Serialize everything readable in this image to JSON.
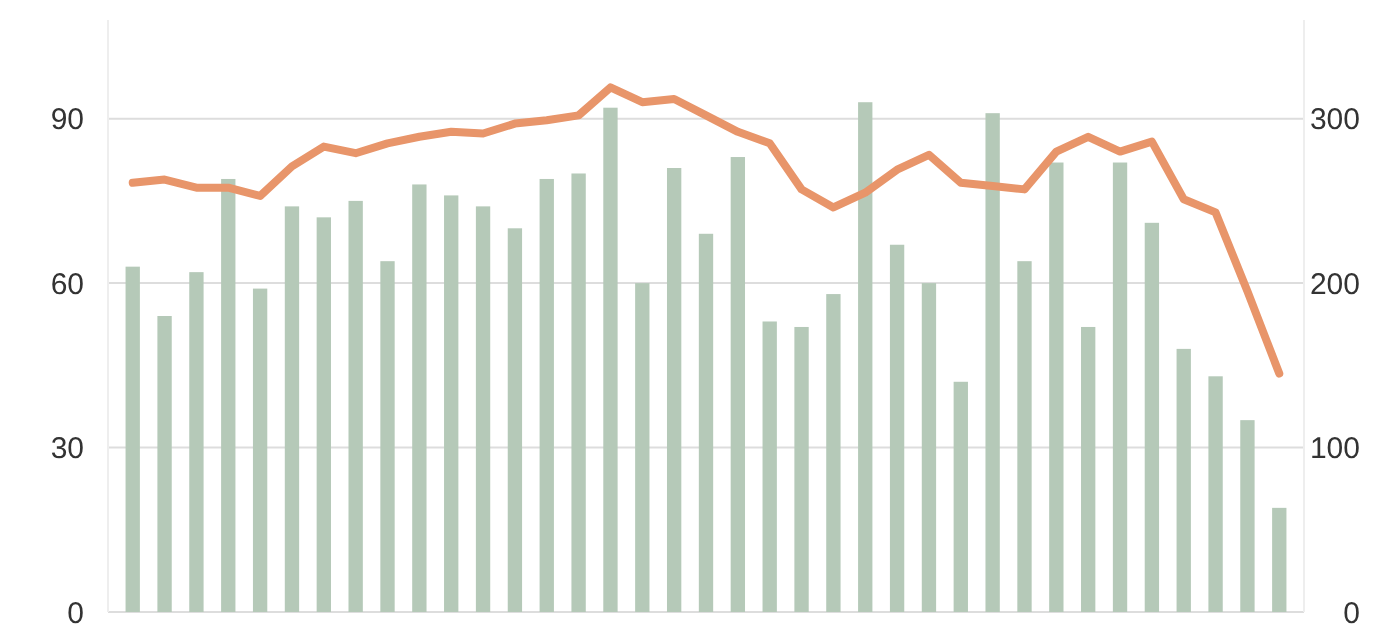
{
  "chart_data": {
    "type": "bar",
    "categories": [
      null,
      null,
      null,
      null,
      null,
      null,
      null,
      null,
      null,
      null,
      null,
      null,
      null,
      null,
      null,
      null,
      null,
      null,
      null,
      null,
      null,
      null,
      null,
      null,
      null,
      null,
      null,
      null,
      null,
      null,
      null,
      null,
      null,
      null,
      null,
      null,
      null
    ],
    "series": [
      {
        "color": "#b5c9b8",
        "values": [
          63,
          54,
          62,
          79,
          59,
          74,
          72,
          75,
          64,
          78,
          76,
          74,
          70,
          79,
          80,
          92,
          60,
          81,
          69,
          83,
          53,
          52,
          58,
          93,
          67,
          60,
          42,
          91,
          64,
          82,
          52,
          82,
          71,
          48,
          43,
          35,
          19
        ]
      },
      {
        "type": "line",
        "axis": "y2",
        "color": "#e8956a",
        "values": [
          261,
          263,
          258,
          258,
          253,
          271,
          283,
          279,
          285,
          289,
          292,
          291,
          297,
          299,
          302,
          319,
          310,
          312,
          302,
          292,
          285,
          257,
          246,
          255,
          269,
          278,
          261,
          259,
          257,
          280,
          289,
          280,
          286,
          251,
          243,
          195,
          145
        ]
      }
    ],
    "ylim": [
      0,
      108
    ],
    "yticks": [
      0,
      30,
      60,
      90
    ],
    "y2lim": [
      0,
      360
    ],
    "y2ticks": [
      0,
      100,
      200,
      300
    ],
    "grid": "y",
    "marker": "none",
    "line_style": "solid"
  }
}
